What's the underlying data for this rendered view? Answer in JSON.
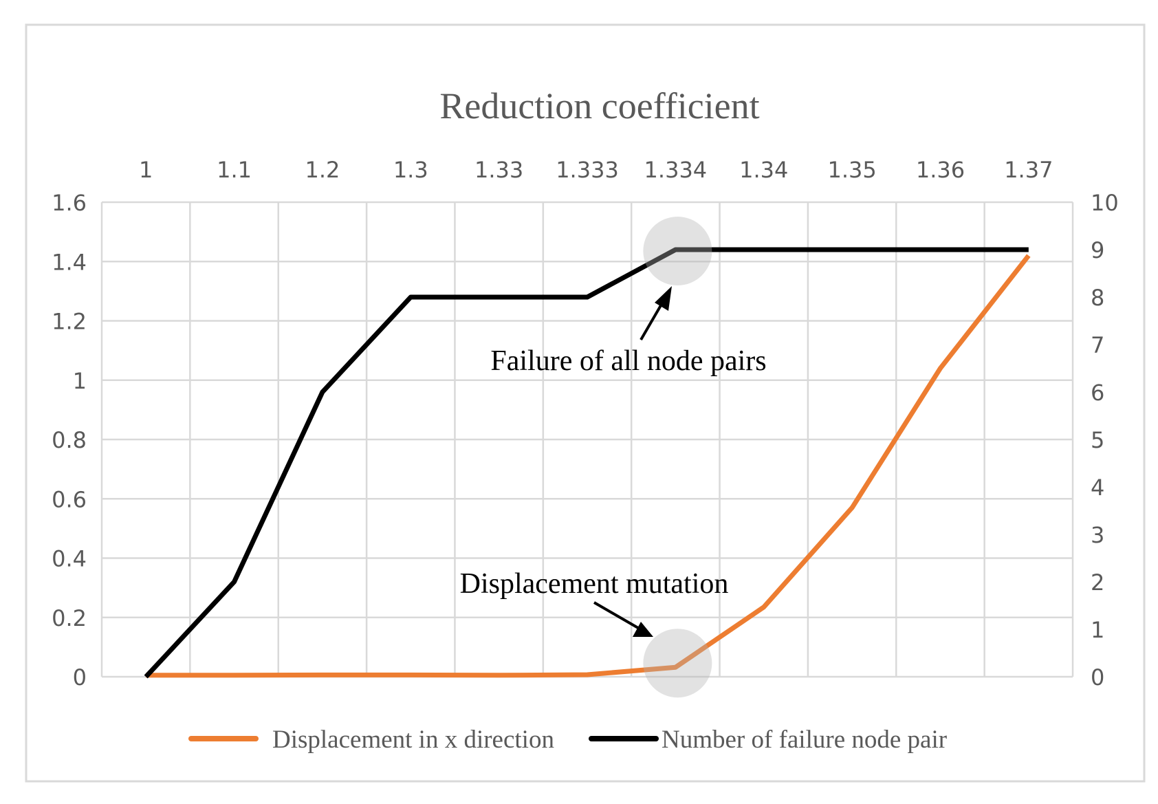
{
  "chart_data": {
    "type": "line",
    "title": "Reduction coefficient",
    "categories": [
      "1",
      "1.1",
      "1.2",
      "1.3",
      "1.33",
      "1.333",
      "1.334",
      "1.34",
      "1.35",
      "1.36",
      "1.37"
    ],
    "xlabel": "",
    "ylabel": "",
    "y_ticks": [
      "0",
      "0.2",
      "0.4",
      "0.6",
      "0.8",
      "1",
      "1.2",
      "1.4",
      "1.6"
    ],
    "ylim": [
      0,
      1.6
    ],
    "y2_ticks": [
      "0",
      "1",
      "2",
      "3",
      "4",
      "5",
      "6",
      "7",
      "8",
      "9",
      "10"
    ],
    "y2lim": [
      0,
      10
    ],
    "grid": true,
    "legend_position": "bottom",
    "series": [
      {
        "name": "Displacement in x direction",
        "axis": "left",
        "color": "#ED7D31",
        "values": [
          0.005,
          0.005,
          0.006,
          0.006,
          0.005,
          0.007,
          0.032,
          0.235,
          0.57,
          1.04,
          1.42
        ]
      },
      {
        "name": "Number of failure node pair",
        "axis": "right",
        "color": "#000000",
        "values": [
          0,
          2,
          6,
          8,
          8,
          8,
          9,
          9,
          9,
          9,
          9
        ]
      }
    ],
    "annotations": [
      {
        "text": "Failure of all node pairs",
        "category_index": 6,
        "series_index": 1
      },
      {
        "text": "Displacement mutation",
        "category_index": 6,
        "series_index": 0
      }
    ]
  }
}
